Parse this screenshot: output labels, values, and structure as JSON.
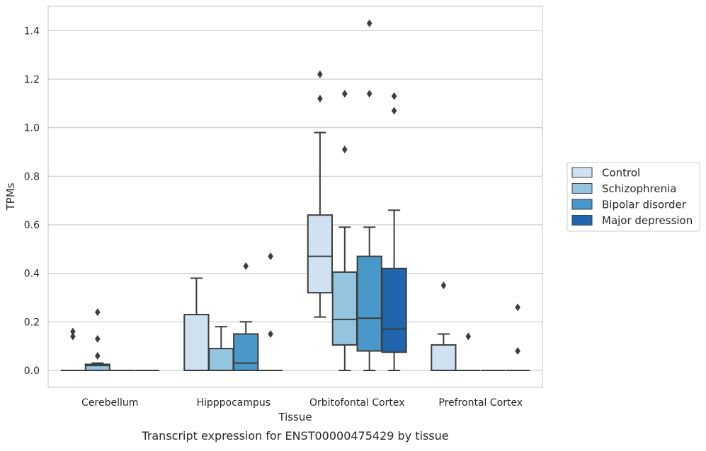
{
  "chart_data": {
    "type": "box",
    "caption": "Transcript expression for ENST00000475429 by tissue",
    "xlabel": "Tissue",
    "ylabel": "TPMs",
    "ylim": [
      -0.07,
      1.5
    ],
    "yticks": [
      0.0,
      0.2,
      0.4,
      0.6,
      0.8,
      1.0,
      1.2,
      1.4
    ],
    "ytick_labels": [
      "0.0",
      "0.2",
      "0.4",
      "0.6",
      "0.8",
      "1.0",
      "1.2",
      "1.4"
    ],
    "grid": true,
    "legend_position": "right",
    "categories": [
      "Cerebellum",
      "Hipppocampus",
      "Orbitofontal Cortex",
      "Prefrontal Cortex"
    ],
    "series": [
      {
        "name": "Control",
        "color": "#d0e1f2",
        "boxes": [
          {
            "q1": 0,
            "median": 0,
            "q3": 0,
            "whisker_low": 0,
            "whisker_high": 0,
            "outliers": [
              0.14,
              0.16
            ]
          },
          {
            "q1": 0,
            "median": 0,
            "q3": 0.23,
            "whisker_low": 0,
            "whisker_high": 0.38,
            "outliers": []
          },
          {
            "q1": 0.32,
            "median": 0.47,
            "q3": 0.64,
            "whisker_low": 0.22,
            "whisker_high": 0.98,
            "outliers": [
              1.12,
              1.22
            ]
          },
          {
            "q1": 0,
            "median": 0,
            "q3": 0.105,
            "whisker_low": 0,
            "whisker_high": 0.15,
            "outliers": [
              0.35
            ]
          }
        ]
      },
      {
        "name": "Schizophrenia",
        "color": "#94c4df",
        "boxes": [
          {
            "q1": 0,
            "median": 0.02,
            "q3": 0.025,
            "whisker_low": 0,
            "whisker_high": 0.03,
            "outliers": [
              0.06,
              0.13,
              0.24
            ]
          },
          {
            "q1": 0,
            "median": 0,
            "q3": 0.09,
            "whisker_low": 0,
            "whisker_high": 0.18,
            "outliers": []
          },
          {
            "q1": 0.105,
            "median": 0.21,
            "q3": 0.405,
            "whisker_low": 0,
            "whisker_high": 0.59,
            "outliers": [
              0.91,
              1.14
            ]
          },
          {
            "q1": 0,
            "median": 0,
            "q3": 0,
            "whisker_low": 0,
            "whisker_high": 0,
            "outliers": [
              0.14
            ]
          }
        ]
      },
      {
        "name": "Bipolar disorder",
        "color": "#4a98c9",
        "boxes": [
          {
            "q1": 0,
            "median": 0,
            "q3": 0,
            "whisker_low": 0,
            "whisker_high": 0,
            "outliers": []
          },
          {
            "q1": 0,
            "median": 0.03,
            "q3": 0.15,
            "whisker_low": 0,
            "whisker_high": 0.2,
            "outliers": [
              0.43
            ]
          },
          {
            "q1": 0.08,
            "median": 0.215,
            "q3": 0.47,
            "whisker_low": 0,
            "whisker_high": 0.59,
            "outliers": [
              1.14,
              1.43
            ]
          },
          {
            "q1": 0,
            "median": 0,
            "q3": 0,
            "whisker_low": 0,
            "whisker_high": 0,
            "outliers": []
          }
        ]
      },
      {
        "name": "Major depression",
        "color": "#2166ac",
        "boxes": [
          {
            "q1": 0,
            "median": 0,
            "q3": 0,
            "whisker_low": 0,
            "whisker_high": 0,
            "outliers": []
          },
          {
            "q1": 0,
            "median": 0,
            "q3": 0,
            "whisker_low": 0,
            "whisker_high": 0,
            "outliers": [
              0.15,
              0.47
            ]
          },
          {
            "q1": 0.075,
            "median": 0.17,
            "q3": 0.42,
            "whisker_low": 0,
            "whisker_high": 0.66,
            "outliers": [
              1.07,
              1.13
            ]
          },
          {
            "q1": 0,
            "median": 0,
            "q3": 0,
            "whisker_low": 0,
            "whisker_high": 0,
            "outliers": [
              0.08,
              0.26
            ]
          }
        ]
      }
    ]
  }
}
